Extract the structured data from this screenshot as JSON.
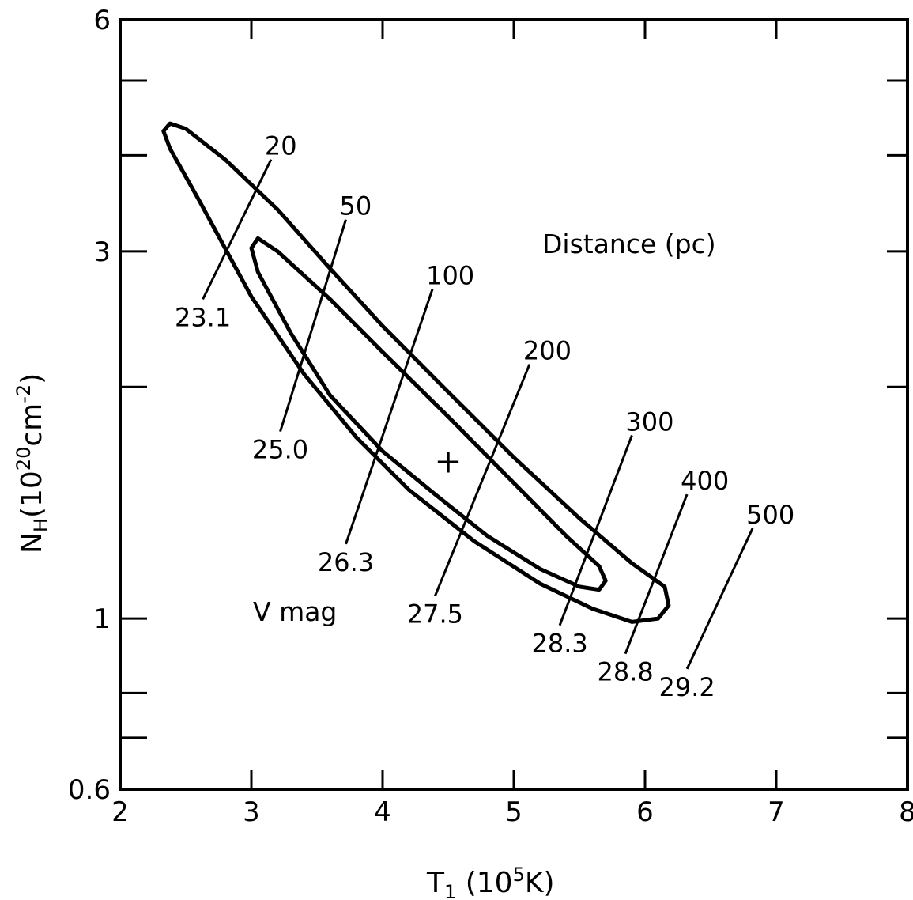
{
  "chart_data": {
    "type": "line",
    "xlabel": "T",
    "xlabel_sub": "1",
    "xlabel_units_open": " (10",
    "xlabel_units_exp": "5",
    "xlabel_units_close": "K)",
    "ylabel": "N",
    "ylabel_sub": "H",
    "ylabel_units_open": "(10",
    "ylabel_units_exp": "20",
    "ylabel_units_mid": "cm",
    "ylabel_units_exp2": "-2",
    "ylabel_units_close": ")",
    "xlim": [
      2,
      8
    ],
    "ylim": [
      0.6,
      6
    ],
    "y_scale": "log",
    "x_ticks": [
      "2",
      "3",
      "4",
      "5",
      "6",
      "7",
      "8"
    ],
    "y_ticks": [
      {
        "value": 0.6,
        "label": "0.6"
      },
      {
        "value": 0.7,
        "label": ""
      },
      {
        "value": 0.8,
        "label": ""
      },
      {
        "value": 1,
        "label": "1"
      },
      {
        "value": 2,
        "label": ""
      },
      {
        "value": 3,
        "label": "3"
      },
      {
        "value": 4,
        "label": ""
      },
      {
        "value": 5,
        "label": ""
      },
      {
        "value": 6,
        "label": "6"
      }
    ],
    "annotations": {
      "distance_header": "Distance (pc)",
      "vmag_header": "V mag"
    },
    "best_fit": {
      "x": 4.5,
      "y": 1.6,
      "label": "+"
    },
    "contours": [
      {
        "name": "outer",
        "points": [
          [
            2.38,
            4.4
          ],
          [
            2.5,
            4.33
          ],
          [
            2.8,
            3.95
          ],
          [
            3.2,
            3.4
          ],
          [
            3.6,
            2.85
          ],
          [
            4.0,
            2.4
          ],
          [
            4.5,
            1.97
          ],
          [
            5.0,
            1.62
          ],
          [
            5.5,
            1.35
          ],
          [
            5.9,
            1.18
          ],
          [
            6.15,
            1.1
          ],
          [
            6.18,
            1.04
          ],
          [
            6.1,
            1.0
          ],
          [
            5.9,
            0.99
          ],
          [
            5.6,
            1.03
          ],
          [
            5.2,
            1.11
          ],
          [
            4.7,
            1.26
          ],
          [
            4.2,
            1.47
          ],
          [
            3.8,
            1.72
          ],
          [
            3.4,
            2.08
          ],
          [
            3.0,
            2.62
          ],
          [
            2.6,
            3.5
          ],
          [
            2.38,
            4.08
          ],
          [
            2.33,
            4.3
          ],
          [
            2.38,
            4.4
          ]
        ]
      },
      {
        "name": "inner",
        "points": [
          [
            3.05,
            3.12
          ],
          [
            3.2,
            3.0
          ],
          [
            3.6,
            2.6
          ],
          [
            4.0,
            2.22
          ],
          [
            4.5,
            1.83
          ],
          [
            5.0,
            1.5
          ],
          [
            5.4,
            1.28
          ],
          [
            5.65,
            1.17
          ],
          [
            5.7,
            1.12
          ],
          [
            5.65,
            1.09
          ],
          [
            5.5,
            1.1
          ],
          [
            5.2,
            1.16
          ],
          [
            4.8,
            1.28
          ],
          [
            4.4,
            1.45
          ],
          [
            4.0,
            1.65
          ],
          [
            3.6,
            1.95
          ],
          [
            3.3,
            2.35
          ],
          [
            3.05,
            2.82
          ],
          [
            3.0,
            3.03
          ],
          [
            3.05,
            3.12
          ]
        ]
      }
    ],
    "distance_lines": [
      {
        "distance": "20",
        "vmag": "23.1",
        "x1": 2.63,
        "y1": 2.6,
        "x2": 3.15,
        "y2": 3.95
      },
      {
        "distance": "50",
        "vmag": "25.0",
        "x1": 3.22,
        "y1": 1.75,
        "x2": 3.72,
        "y2": 3.3
      },
      {
        "distance": "100",
        "vmag": "26.3",
        "x1": 3.72,
        "y1": 1.25,
        "x2": 4.38,
        "y2": 2.68
      },
      {
        "distance": "200",
        "vmag": "27.5",
        "x1": 4.4,
        "y1": 1.07,
        "x2": 5.12,
        "y2": 2.14
      },
      {
        "distance": "300",
        "vmag": "28.3",
        "x1": 5.35,
        "y1": 0.98,
        "x2": 5.9,
        "y2": 1.73
      },
      {
        "distance": "400",
        "vmag": "28.8",
        "x1": 5.85,
        "y1": 0.9,
        "x2": 6.32,
        "y2": 1.45
      },
      {
        "distance": "500",
        "vmag": "29.2",
        "x1": 6.32,
        "y1": 0.86,
        "x2": 6.82,
        "y2": 1.31
      }
    ]
  }
}
